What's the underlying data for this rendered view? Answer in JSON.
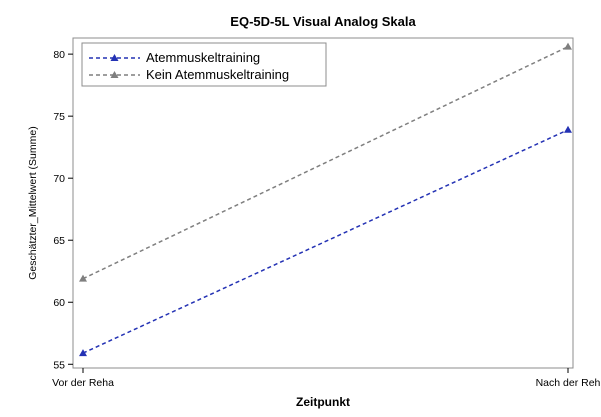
{
  "chart_data": {
    "type": "line",
    "title": "EQ-5D-5L Visual Analog Skala",
    "xlabel": "Zeitpunkt",
    "ylabel": "Geschätzter_Mittelwert (Summe)",
    "categories": [
      "Vor der Reha",
      "Nach der Reh"
    ],
    "ylim": [
      54.7,
      81.3
    ],
    "yticks": [
      55,
      60,
      65,
      70,
      75,
      80
    ],
    "grid": false,
    "legend_position": "top-left",
    "series": [
      {
        "name": "Atemmuskeltraining",
        "values": [
          55.9,
          73.9
        ],
        "color": "#2432b4",
        "marker": "triangle",
        "line_style": "dashed"
      },
      {
        "name": "Kein Atemmuskeltraining",
        "values": [
          61.9,
          80.6
        ],
        "color": "#7f7f7f",
        "marker": "triangle",
        "line_style": "dashed"
      }
    ]
  }
}
